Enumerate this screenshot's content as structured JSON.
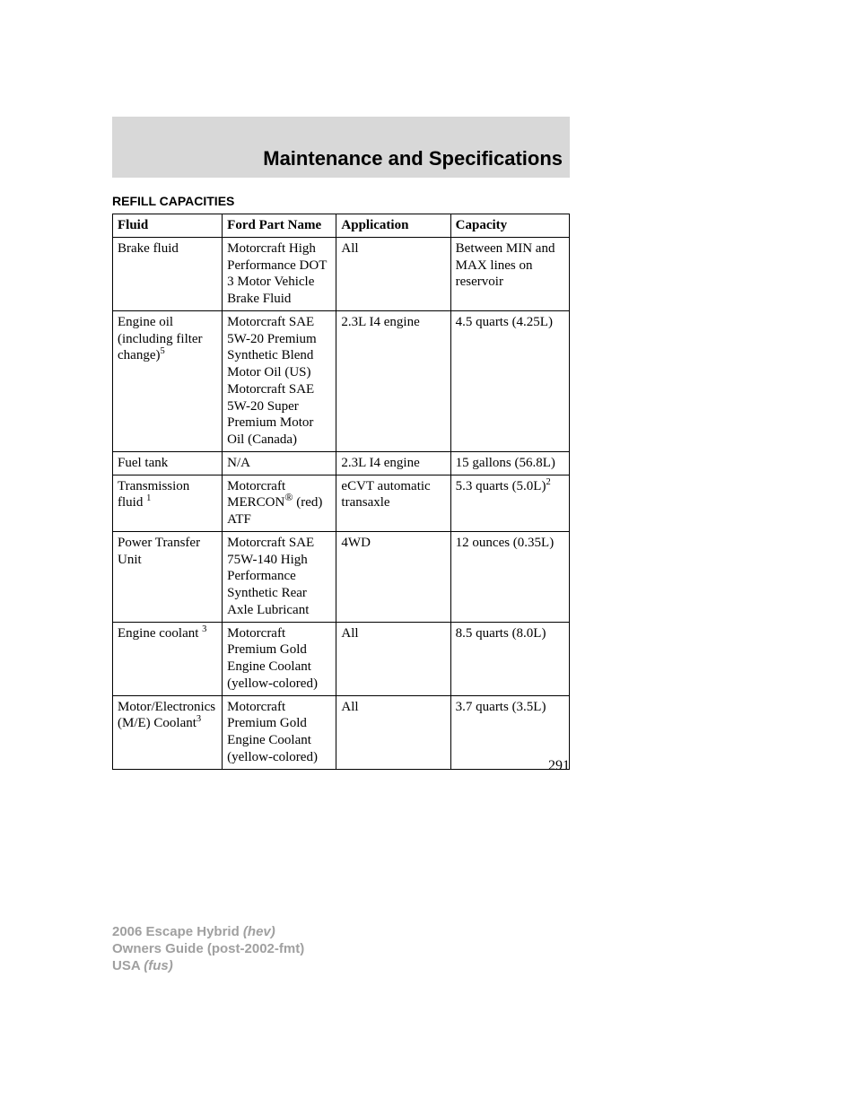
{
  "header": {
    "title": "Maintenance and Specifications",
    "bar_bg": "#d8d8d8"
  },
  "section_heading": "REFILL CAPACITIES",
  "table": {
    "columns": [
      "Fluid",
      "Ford Part Name",
      "Application",
      "Capacity"
    ],
    "col_widths_pct": [
      24,
      25,
      25,
      26
    ],
    "border_color": "#000000",
    "font_size_pt": 11,
    "rows": [
      {
        "fluid": "Brake fluid",
        "fluid_sup": "",
        "part": "Motorcraft High Performance DOT 3 Motor Vehicle Brake Fluid",
        "application": "All",
        "capacity": "Between MIN and MAX lines on reservoir",
        "capacity_sup": ""
      },
      {
        "fluid": "Engine oil (including filter change)",
        "fluid_sup": "5",
        "part": "Motorcraft SAE 5W-20 Premium Synthetic Blend Motor Oil (US) Motorcraft SAE 5W-20 Super Premium Motor Oil (Canada)",
        "application": "2.3L I4 engine",
        "capacity": "4.5 quarts (4.25L)",
        "capacity_sup": ""
      },
      {
        "fluid": "Fuel tank",
        "fluid_sup": "",
        "part": "N/A",
        "application": "2.3L I4 engine",
        "capacity": "15 gallons (56.8L)",
        "capacity_sup": ""
      },
      {
        "fluid": "Transmission fluid ",
        "fluid_sup": "1",
        "part": "Motorcraft MERCON® (red) ATF",
        "application": "eCVT automatic transaxle",
        "capacity": "5.3 quarts (5.0L)",
        "capacity_sup": "2"
      },
      {
        "fluid": "Power Transfer Unit",
        "fluid_sup": "",
        "part": "Motorcraft SAE 75W-140 High Performance Synthetic Rear Axle Lubricant",
        "application": "4WD",
        "capacity": "12 ounces (0.35L)",
        "capacity_sup": ""
      },
      {
        "fluid": "Engine coolant ",
        "fluid_sup": "3",
        "part": "Motorcraft Premium Gold Engine Coolant (yellow-colored)",
        "application": "All",
        "capacity": "8.5 quarts (8.0L)",
        "capacity_sup": ""
      },
      {
        "fluid": "Motor/Electronics (M/E) Coolant",
        "fluid_sup": "3",
        "part": "Motorcraft Premium Gold Engine Coolant (yellow-colored)",
        "application": "All",
        "capacity": "3.7 quarts (3.5L)",
        "capacity_sup": ""
      }
    ]
  },
  "page_number": "291",
  "footer": {
    "line1_bold": "2006 Escape Hybrid ",
    "line1_ital": "(hev)",
    "line2_bold": "Owners Guide (post-2002-fmt)",
    "line3_bold": "USA ",
    "line3_ital": "(fus)"
  }
}
